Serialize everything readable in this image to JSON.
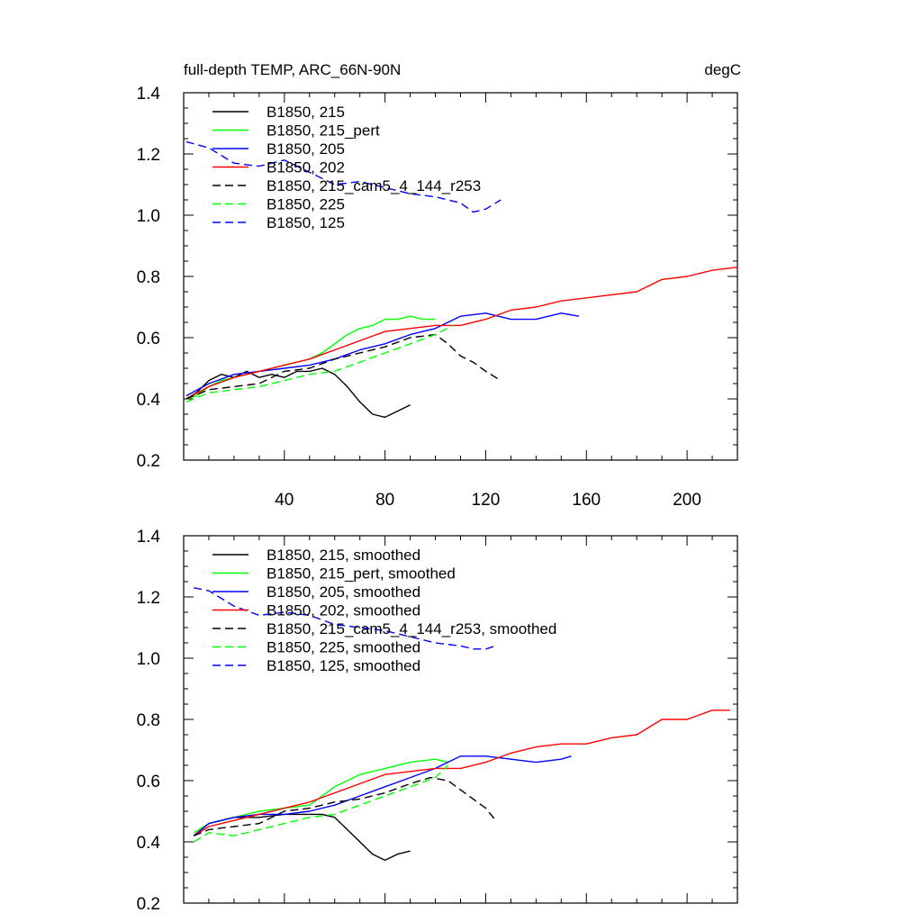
{
  "figure": {
    "title_left": "full-depth TEMP, ARC_66N-90N",
    "title_right": "degC"
  },
  "chart_data": [
    {
      "type": "line",
      "xlim": [
        0,
        220
      ],
      "ylim": [
        0.2,
        1.4
      ],
      "xticks": [
        40,
        80,
        120,
        160,
        200
      ],
      "yticks": [
        0.2,
        0.4,
        0.6,
        0.8,
        1.0,
        1.2,
        1.4
      ],
      "ytick_labels": [
        "0.2",
        "0.4",
        "0.6",
        "0.8",
        "1.0",
        "1.2",
        "1.4"
      ],
      "legend_position": "top-left",
      "grid": false,
      "series": [
        {
          "name": "B1850, 215",
          "color": "#000000",
          "dash": "solid",
          "x": [
            1,
            5,
            10,
            15,
            20,
            25,
            30,
            35,
            40,
            45,
            50,
            55,
            60,
            65,
            70,
            75,
            80,
            85,
            90
          ],
          "y": [
            0.4,
            0.42,
            0.46,
            0.48,
            0.47,
            0.49,
            0.47,
            0.48,
            0.47,
            0.49,
            0.49,
            0.5,
            0.48,
            0.44,
            0.39,
            0.35,
            0.34,
            0.36,
            0.38
          ]
        },
        {
          "name": "B1850, 215_pert",
          "color": "#00ff00",
          "dash": "solid",
          "x": [
            1,
            5,
            10,
            15,
            20,
            25,
            30,
            35,
            40,
            45,
            50,
            55,
            60,
            65,
            70,
            75,
            80,
            85,
            90,
            95,
            100
          ],
          "y": [
            0.4,
            0.41,
            0.44,
            0.46,
            0.47,
            0.48,
            0.49,
            0.5,
            0.51,
            0.52,
            0.53,
            0.55,
            0.58,
            0.61,
            0.63,
            0.64,
            0.66,
            0.66,
            0.67,
            0.66,
            0.66
          ]
        },
        {
          "name": "B1850, 205",
          "color": "#0000ff",
          "dash": "solid",
          "x": [
            1,
            10,
            20,
            30,
            40,
            50,
            60,
            70,
            80,
            90,
            100,
            110,
            120,
            130,
            140,
            150,
            157
          ],
          "y": [
            0.41,
            0.45,
            0.48,
            0.49,
            0.5,
            0.51,
            0.53,
            0.56,
            0.58,
            0.61,
            0.63,
            0.67,
            0.68,
            0.66,
            0.66,
            0.68,
            0.67
          ]
        },
        {
          "name": "B1850, 202",
          "color": "#ff0000",
          "dash": "solid",
          "x": [
            1,
            10,
            20,
            30,
            40,
            50,
            60,
            70,
            80,
            90,
            100,
            110,
            120,
            130,
            140,
            150,
            160,
            170,
            180,
            190,
            200,
            210,
            220
          ],
          "y": [
            0.4,
            0.44,
            0.47,
            0.49,
            0.51,
            0.53,
            0.56,
            0.59,
            0.62,
            0.63,
            0.64,
            0.64,
            0.66,
            0.69,
            0.7,
            0.72,
            0.73,
            0.74,
            0.75,
            0.79,
            0.8,
            0.82,
            0.83
          ]
        },
        {
          "name": "B1850, 215_cam5_4_144_r253",
          "color": "#000000",
          "dash": "dashed",
          "x": [
            1,
            10,
            20,
            30,
            40,
            50,
            60,
            70,
            80,
            90,
            100,
            105,
            110,
            115,
            120,
            126
          ],
          "y": [
            0.4,
            0.43,
            0.44,
            0.45,
            0.49,
            0.5,
            0.53,
            0.55,
            0.57,
            0.6,
            0.61,
            0.58,
            0.54,
            0.52,
            0.49,
            0.46
          ]
        },
        {
          "name": "B1850, 225",
          "color": "#00ff00",
          "dash": "dashed",
          "x": [
            1,
            10,
            20,
            30,
            40,
            50,
            60,
            70,
            80,
            90,
            100,
            107
          ],
          "y": [
            0.39,
            0.42,
            0.43,
            0.44,
            0.46,
            0.48,
            0.49,
            0.52,
            0.55,
            0.58,
            0.61,
            0.64
          ]
        },
        {
          "name": "B1850, 125",
          "color": "#0000ff",
          "dash": "dashed",
          "x": [
            1,
            10,
            20,
            30,
            40,
            50,
            60,
            70,
            80,
            90,
            100,
            110,
            115,
            120,
            126
          ],
          "y": [
            1.24,
            1.22,
            1.17,
            1.16,
            1.18,
            1.14,
            1.1,
            1.11,
            1.09,
            1.07,
            1.06,
            1.04,
            1.01,
            1.02,
            1.05
          ]
        }
      ]
    },
    {
      "type": "line",
      "xlim": [
        0,
        220
      ],
      "ylim": [
        0.2,
        1.4
      ],
      "xticks": [
        40,
        80,
        120,
        160,
        200
      ],
      "yticks": [
        0.2,
        0.4,
        0.6,
        0.8,
        1.0,
        1.2,
        1.4
      ],
      "ytick_labels": [
        "0.2",
        "0.4",
        "0.6",
        "0.8",
        "1.0",
        "1.2",
        "1.4"
      ],
      "legend_position": "top-left",
      "grid": false,
      "series": [
        {
          "name": "B1850, 215, smoothed",
          "color": "#000000",
          "dash": "solid",
          "x": [
            4,
            10,
            20,
            30,
            40,
            50,
            55,
            60,
            65,
            70,
            75,
            80,
            85,
            90
          ],
          "y": [
            0.42,
            0.46,
            0.48,
            0.48,
            0.49,
            0.49,
            0.49,
            0.48,
            0.44,
            0.4,
            0.36,
            0.34,
            0.36,
            0.37
          ]
        },
        {
          "name": "B1850, 215_pert, smoothed",
          "color": "#00ff00",
          "dash": "solid",
          "x": [
            4,
            10,
            20,
            30,
            40,
            50,
            60,
            70,
            80,
            90,
            100,
            105
          ],
          "y": [
            0.43,
            0.46,
            0.48,
            0.5,
            0.51,
            0.52,
            0.58,
            0.62,
            0.64,
            0.66,
            0.67,
            0.66
          ]
        },
        {
          "name": "B1850, 205, smoothed",
          "color": "#0000ff",
          "dash": "solid",
          "x": [
            4,
            10,
            20,
            30,
            40,
            50,
            60,
            70,
            80,
            90,
            100,
            110,
            120,
            130,
            140,
            150,
            154
          ],
          "y": [
            0.42,
            0.46,
            0.48,
            0.49,
            0.49,
            0.5,
            0.52,
            0.55,
            0.58,
            0.61,
            0.64,
            0.68,
            0.68,
            0.67,
            0.66,
            0.67,
            0.68
          ]
        },
        {
          "name": "B1850, 202, smoothed",
          "color": "#ff0000",
          "dash": "solid",
          "x": [
            4,
            10,
            20,
            30,
            40,
            50,
            60,
            70,
            80,
            90,
            100,
            110,
            120,
            130,
            140,
            150,
            160,
            170,
            180,
            190,
            200,
            210,
            217
          ],
          "y": [
            0.42,
            0.45,
            0.47,
            0.49,
            0.51,
            0.53,
            0.56,
            0.59,
            0.62,
            0.63,
            0.64,
            0.64,
            0.66,
            0.69,
            0.71,
            0.72,
            0.72,
            0.74,
            0.75,
            0.8,
            0.8,
            0.83,
            0.83
          ]
        },
        {
          "name": "B1850, 215_cam5_4_144_r253, smoothed",
          "color": "#000000",
          "dash": "dashed",
          "x": [
            4,
            10,
            20,
            30,
            40,
            50,
            60,
            70,
            80,
            90,
            98,
            105,
            110,
            115,
            120,
            124
          ],
          "y": [
            0.42,
            0.44,
            0.45,
            0.46,
            0.5,
            0.51,
            0.53,
            0.54,
            0.56,
            0.59,
            0.61,
            0.6,
            0.57,
            0.54,
            0.51,
            0.47
          ]
        },
        {
          "name": "B1850, 225, smoothed",
          "color": "#00ff00",
          "dash": "dashed",
          "x": [
            4,
            10,
            20,
            30,
            40,
            50,
            60,
            70,
            80,
            90,
            100,
            105
          ],
          "y": [
            0.4,
            0.43,
            0.42,
            0.44,
            0.46,
            0.48,
            0.49,
            0.52,
            0.55,
            0.58,
            0.61,
            0.65
          ]
        },
        {
          "name": "B1850, 125, smoothed",
          "color": "#0000ff",
          "dash": "dashed",
          "x": [
            4,
            10,
            20,
            30,
            40,
            50,
            60,
            70,
            80,
            90,
            100,
            110,
            115,
            120,
            124
          ],
          "y": [
            1.23,
            1.22,
            1.17,
            1.14,
            1.15,
            1.14,
            1.11,
            1.1,
            1.09,
            1.07,
            1.05,
            1.04,
            1.03,
            1.03,
            1.04
          ]
        }
      ]
    }
  ]
}
